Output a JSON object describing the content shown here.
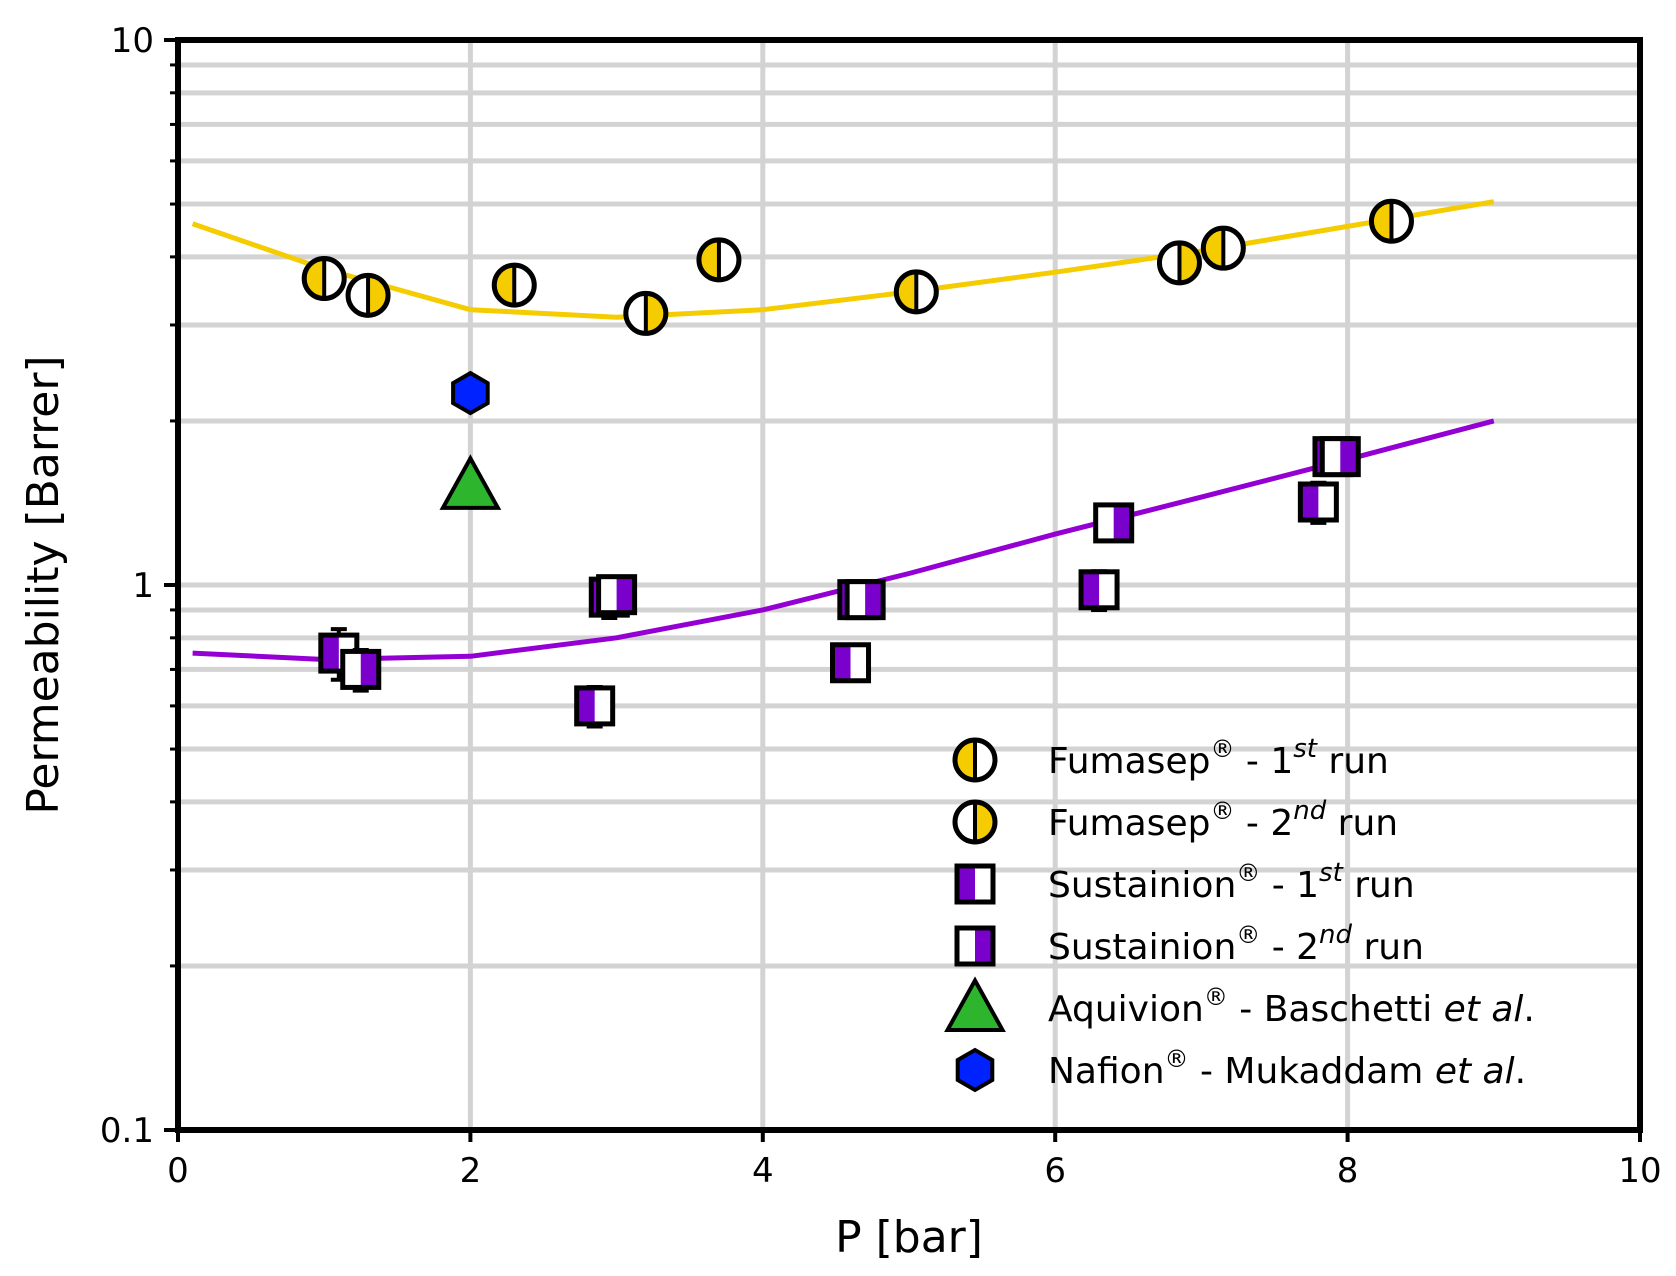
{
  "chart_data": {
    "type": "scatter",
    "title": "",
    "xlabel": "P [bar]",
    "ylabel": "Permeability [Barrer]",
    "xlim": [
      0,
      10
    ],
    "ylim": [
      0.1,
      10
    ],
    "yscale": "log",
    "grid": true,
    "legend_position": "bottom-right",
    "x_ticks": [
      0,
      2,
      4,
      6,
      8,
      10
    ],
    "x_tick_labels": [
      "0",
      "2",
      "4",
      "6",
      "8",
      "10"
    ],
    "y_ticks": [
      0.1,
      1,
      10
    ],
    "y_tick_labels": [
      "0.1",
      "1",
      "10"
    ],
    "colors": {
      "fumasep": "#f5cc00",
      "sustainion": "#7a00cc",
      "aquivion": "#2db52d",
      "nafion": "#0022ff"
    },
    "series": [
      {
        "name": "Fumasep® - 1st run",
        "label_main": "Fumasep",
        "label_sup": "®",
        "label_mid": " - 1",
        "label_sup2": "st",
        "label_end": " run",
        "marker": "circle-half-left",
        "x": [
          1.0,
          2.3,
          3.7,
          5.05,
          7.15,
          8.3
        ],
        "y": [
          3.65,
          3.55,
          3.95,
          3.45,
          4.15,
          4.65
        ],
        "yerr": [
          0.2,
          0.2,
          0.12,
          0.12,
          0.12,
          0.15
        ]
      },
      {
        "name": "Fumasep® - 2nd run",
        "label_main": "Fumasep",
        "label_sup": "®",
        "label_mid": " - 2",
        "label_sup2": "nd",
        "label_end": " run",
        "marker": "circle-half-right",
        "x": [
          1.3,
          3.2,
          6.85
        ],
        "y": [
          3.4,
          3.15,
          3.9
        ],
        "yerr": [
          0.12,
          0.12,
          0.12
        ]
      },
      {
        "name": "Sustainion® - 1st run",
        "label_main": "Sustainion",
        "label_sup": "®",
        "label_mid": " - 1",
        "label_sup2": "st",
        "label_end": " run",
        "marker": "square-half-left",
        "x": [
          1.1,
          2.85,
          2.95,
          4.6,
          4.65,
          6.3,
          7.8,
          7.9
        ],
        "y": [
          0.75,
          0.6,
          0.95,
          0.72,
          0.94,
          0.98,
          1.42,
          1.72
        ],
        "yerr": [
          0.08,
          0.05,
          0.08,
          0.05,
          0.07,
          0.08,
          0.12,
          0.1
        ]
      },
      {
        "name": "Sustainion® - 2nd run",
        "label_main": "Sustainion",
        "label_sup": "®",
        "label_mid": " - 2",
        "label_sup2": "nd",
        "label_end": " run",
        "marker": "square-half-right",
        "x": [
          1.25,
          3.0,
          4.7,
          6.4,
          7.95
        ],
        "y": [
          0.7,
          0.96,
          0.94,
          1.3,
          1.72
        ],
        "yerr": [
          0.06,
          0.06,
          0.06,
          0.08,
          0.1
        ]
      },
      {
        "name": "Aquivion® - Baschetti et al.",
        "label_main": "Aquivion",
        "label_sup": "®",
        "label_mid": " - Baschetti ",
        "label_sup2": "",
        "label_italic": "et al",
        "label_end": ".",
        "marker": "triangle",
        "x": [
          2.0
        ],
        "y": [
          1.52
        ],
        "yerr": [
          0
        ]
      },
      {
        "name": "Nafion® - Mukaddam et al.",
        "label_main": "Nafion",
        "label_sup": "®",
        "label_mid": " - Mukaddam ",
        "label_sup2": "",
        "label_italic": "et al",
        "label_end": ".",
        "marker": "hexagon",
        "x": [
          2.0
        ],
        "y": [
          2.25
        ],
        "yerr": [
          0
        ]
      }
    ],
    "fit_lines": [
      {
        "series": "Fumasep",
        "color": "#f5cc00",
        "x": [
          0.1,
          1.0,
          2.0,
          3.0,
          4.0,
          5.0,
          6.0,
          7.0,
          8.0,
          9.0
        ],
        "y": [
          4.6,
          3.8,
          3.2,
          3.1,
          3.2,
          3.45,
          3.75,
          4.1,
          4.55,
          5.05
        ]
      },
      {
        "series": "Sustainion",
        "color": "#9400d3",
        "x": [
          0.1,
          1.0,
          2.0,
          3.0,
          4.0,
          5.0,
          6.0,
          7.0,
          8.0,
          9.0
        ],
        "y": [
          0.75,
          0.73,
          0.74,
          0.8,
          0.9,
          1.05,
          1.24,
          1.45,
          1.7,
          2.0
        ]
      }
    ]
  }
}
